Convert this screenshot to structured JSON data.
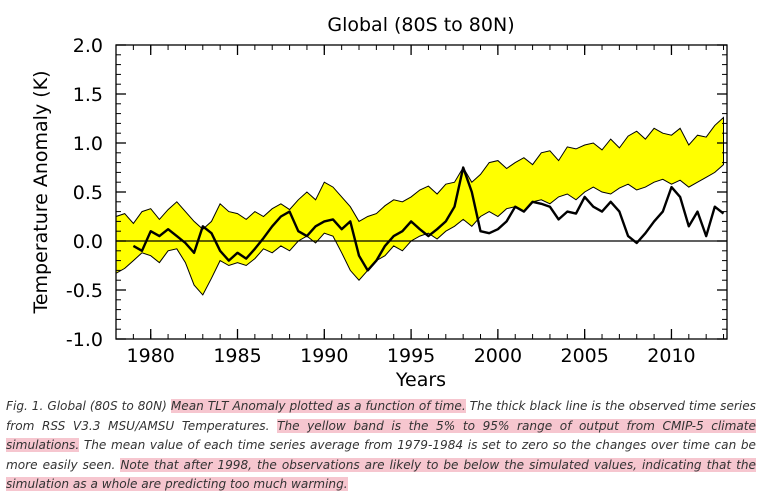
{
  "chart_data": {
    "type": "line",
    "title": "Global (80S to 80N)",
    "xlabel": "Years",
    "ylabel": "Temperature Anomaly (K)",
    "xlim": [
      1978,
      2013.2
    ],
    "ylim": [
      -1.0,
      2.0
    ],
    "xticks": [
      1980,
      1985,
      1990,
      1995,
      2000,
      2005,
      2010
    ],
    "xtick_labels": [
      "1980",
      "1985",
      "1990",
      "1995",
      "2000",
      "2005",
      "2010"
    ],
    "yticks": [
      -1.0,
      -0.5,
      0.0,
      0.5,
      1.0,
      1.5,
      2.0
    ],
    "ytick_labels": [
      "-1.0",
      "-0.5",
      "0.0",
      "0.5",
      "1.0",
      "1.5",
      "2.0"
    ],
    "zero_line": true,
    "colors": {
      "band": "#ffff00",
      "line": "#000000",
      "axis": "#000000"
    },
    "series": [
      {
        "name": "CMIP-5 5% to 95% range (upper)",
        "style": "band-upper",
        "x": [
          1978,
          1978.5,
          1979,
          1979.5,
          1980,
          1980.5,
          1981,
          1981.5,
          1982,
          1982.5,
          1983,
          1983.5,
          1984,
          1984.5,
          1985,
          1985.5,
          1986,
          1986.5,
          1987,
          1987.5,
          1988,
          1988.5,
          1989,
          1989.5,
          1990,
          1990.5,
          1991,
          1991.5,
          1992,
          1992.5,
          1993,
          1993.5,
          1994,
          1994.5,
          1995,
          1995.5,
          1996,
          1996.5,
          1997,
          1997.5,
          1998,
          1998.5,
          1999,
          1999.5,
          2000,
          2000.5,
          2001,
          2001.5,
          2002,
          2002.5,
          2003,
          2003.5,
          2004,
          2004.5,
          2005,
          2005.5,
          2006,
          2006.5,
          2007,
          2007.5,
          2008,
          2008.5,
          2009,
          2009.5,
          2010,
          2010.5,
          2011,
          2011.5,
          2012,
          2012.5,
          2013
        ],
        "values": [
          0.25,
          0.28,
          0.18,
          0.3,
          0.33,
          0.22,
          0.32,
          0.4,
          0.3,
          0.2,
          0.12,
          0.2,
          0.38,
          0.3,
          0.28,
          0.22,
          0.3,
          0.25,
          0.33,
          0.38,
          0.32,
          0.42,
          0.5,
          0.42,
          0.6,
          0.55,
          0.45,
          0.35,
          0.2,
          0.25,
          0.28,
          0.36,
          0.42,
          0.4,
          0.45,
          0.52,
          0.56,
          0.48,
          0.58,
          0.6,
          0.75,
          0.6,
          0.68,
          0.8,
          0.82,
          0.74,
          0.8,
          0.85,
          0.78,
          0.9,
          0.92,
          0.82,
          0.96,
          0.94,
          0.98,
          1.0,
          0.93,
          1.04,
          0.95,
          1.07,
          1.12,
          1.04,
          1.15,
          1.1,
          1.08,
          1.15,
          0.98,
          1.08,
          1.06,
          1.18,
          1.26
        ]
      },
      {
        "name": "CMIP-5 5% to 95% range (lower)",
        "style": "band-lower",
        "x": [
          1978,
          1978.5,
          1979,
          1979.5,
          1980,
          1980.5,
          1981,
          1981.5,
          1982,
          1982.5,
          1983,
          1983.5,
          1984,
          1984.5,
          1985,
          1985.5,
          1986,
          1986.5,
          1987,
          1987.5,
          1988,
          1988.5,
          1989,
          1989.5,
          1990,
          1990.5,
          1991,
          1991.5,
          1992,
          1992.5,
          1993,
          1993.5,
          1994,
          1994.5,
          1995,
          1995.5,
          1996,
          1996.5,
          1997,
          1997.5,
          1998,
          1998.5,
          1999,
          1999.5,
          2000,
          2000.5,
          2001,
          2001.5,
          2002,
          2002.5,
          2003,
          2003.5,
          2004,
          2004.5,
          2005,
          2005.5,
          2006,
          2006.5,
          2007,
          2007.5,
          2008,
          2008.5,
          2009,
          2009.5,
          2010,
          2010.5,
          2011,
          2011.5,
          2012,
          2012.5,
          2013
        ],
        "values": [
          -0.33,
          -0.28,
          -0.2,
          -0.12,
          -0.15,
          -0.22,
          -0.1,
          -0.08,
          -0.22,
          -0.45,
          -0.55,
          -0.38,
          -0.2,
          -0.25,
          -0.22,
          -0.25,
          -0.18,
          -0.08,
          -0.12,
          -0.05,
          -0.1,
          0.0,
          0.05,
          -0.02,
          0.08,
          0.05,
          -0.12,
          -0.3,
          -0.4,
          -0.3,
          -0.2,
          -0.15,
          -0.05,
          -0.1,
          0.0,
          0.05,
          0.08,
          0.02,
          0.1,
          0.15,
          0.22,
          0.15,
          0.25,
          0.3,
          0.25,
          0.33,
          0.35,
          0.3,
          0.4,
          0.42,
          0.38,
          0.45,
          0.48,
          0.42,
          0.5,
          0.55,
          0.5,
          0.48,
          0.54,
          0.58,
          0.52,
          0.55,
          0.6,
          0.63,
          0.58,
          0.62,
          0.55,
          0.6,
          0.65,
          0.7,
          0.78
        ]
      },
      {
        "name": "RSS V3.3 MSU/AMSU observed (thick black)",
        "style": "line",
        "x": [
          1979,
          1979.5,
          1980,
          1980.5,
          1981,
          1981.5,
          1982,
          1982.5,
          1983,
          1983.5,
          1984,
          1984.5,
          1985,
          1985.5,
          1986,
          1986.5,
          1987,
          1987.5,
          1988,
          1988.5,
          1989,
          1989.5,
          1990,
          1990.5,
          1991,
          1991.5,
          1992,
          1992.5,
          1993,
          1993.5,
          1994,
          1994.5,
          1995,
          1995.5,
          1996,
          1996.5,
          1997,
          1997.5,
          1998,
          1998.5,
          1999,
          1999.5,
          2000,
          2000.5,
          2001,
          2001.5,
          2002,
          2002.5,
          2003,
          2003.5,
          2004,
          2004.5,
          2005,
          2005.5,
          2006,
          2006.5,
          2007,
          2007.5,
          2008,
          2008.5,
          2009,
          2009.5,
          2010,
          2010.5,
          2011,
          2011.5,
          2012,
          2012.5,
          2013
        ],
        "values": [
          -0.05,
          -0.1,
          0.1,
          0.05,
          0.12,
          0.05,
          -0.02,
          -0.12,
          0.15,
          0.08,
          -0.1,
          -0.2,
          -0.12,
          -0.18,
          -0.08,
          0.03,
          0.15,
          0.25,
          0.3,
          0.1,
          0.05,
          0.15,
          0.2,
          0.22,
          0.12,
          0.2,
          -0.15,
          -0.3,
          -0.2,
          -0.05,
          0.05,
          0.1,
          0.2,
          0.12,
          0.05,
          0.12,
          0.2,
          0.35,
          0.75,
          0.5,
          0.1,
          0.08,
          0.12,
          0.2,
          0.35,
          0.3,
          0.4,
          0.38,
          0.35,
          0.22,
          0.3,
          0.28,
          0.45,
          0.35,
          0.3,
          0.4,
          0.3,
          0.05,
          -0.02,
          0.08,
          0.2,
          0.3,
          0.55,
          0.45,
          0.15,
          0.3,
          0.05,
          0.35,
          0.28
        ]
      }
    ]
  },
  "caption": {
    "p1": "Fig. 1.  Global (80S to 80N) ",
    "h1": "Mean TLT Anomaly plotted as a function of time.",
    "p2": "  The thick black line is the observed time series from RSS V3.3 MSU/AMSU Temperatures.  ",
    "h2": "The yellow band is the 5% to 95% range of output from CMIP-5 climate simulations.",
    "p3": "  The mean value of each time series average from 1979-1984 is set to zero so the changes over time can be more easily seen.  ",
    "h3": "Note that after 1998, the observations are likely to be below the simulated values, indicating that the simulation as a whole are predicting too much warming."
  }
}
